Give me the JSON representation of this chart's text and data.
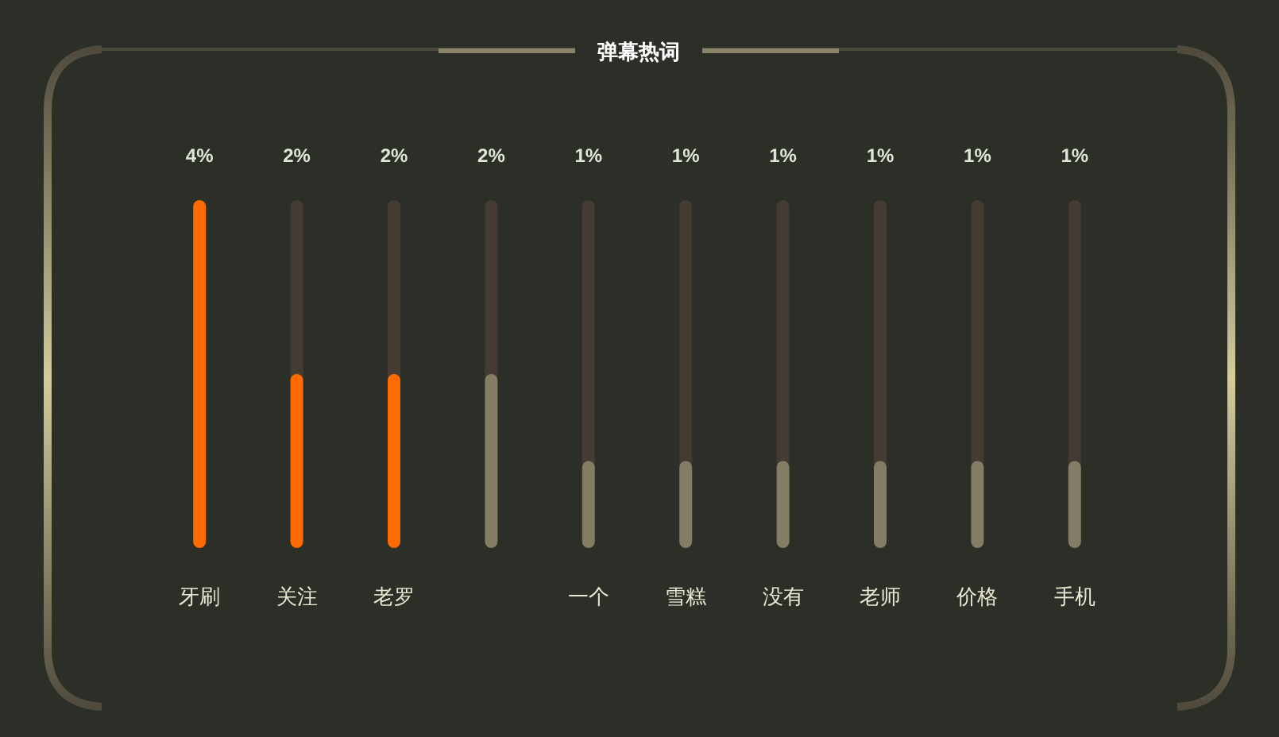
{
  "chart_data": {
    "type": "bar",
    "title": "弹幕热词",
    "categories": [
      "牙刷",
      "关注",
      "老罗",
      null,
      "一个",
      "雪糕",
      "没有",
      "老师",
      "价格",
      "手机"
    ],
    "values": [
      4,
      2,
      2,
      2,
      1,
      1,
      1,
      1,
      1,
      1
    ],
    "colors": [
      "#ff6b00",
      "#ff6b00",
      "#ff6b00",
      "#857c65",
      "#857c65",
      "#857c65",
      "#857c65",
      "#857c65",
      "#857c65",
      "#857c65"
    ],
    "value_labels": [
      "4%",
      "2%",
      "2%",
      "2%",
      "1%",
      "1%",
      "1%",
      "1%",
      "1%",
      "1%"
    ],
    "ylim": [
      0,
      4
    ],
    "tick_labels": "x"
  }
}
